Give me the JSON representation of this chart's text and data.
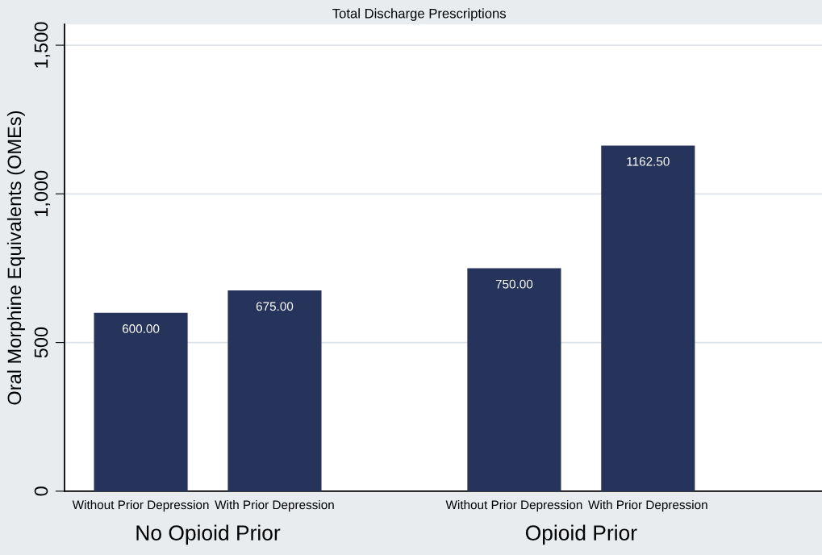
{
  "chart_data": {
    "type": "bar",
    "title": "Total Discharge Prescriptions",
    "ylabel": "Oral Morphine Equivalents (OMEs)",
    "categories": [
      "Without Prior Depression",
      "With Prior Depression",
      "Without Prior Depression",
      "With Prior Depression"
    ],
    "values": [
      600,
      675,
      750,
      1162.5
    ],
    "value_labels": [
      "600.00",
      "675.00",
      "750.00",
      "1162.50"
    ],
    "color": "#26335a",
    "annotations": [
      "No Opioid Prior",
      "Opioid Prior"
    ],
    "ylim": [
      0,
      1570
    ],
    "yticks": [
      0,
      {
        "value": 500,
        "label": "500"
      },
      {
        "value": 1000,
        "label": "1,000"
      },
      {
        "value": 1500,
        "label": "1,500"
      }
    ],
    "grid": "y"
  }
}
